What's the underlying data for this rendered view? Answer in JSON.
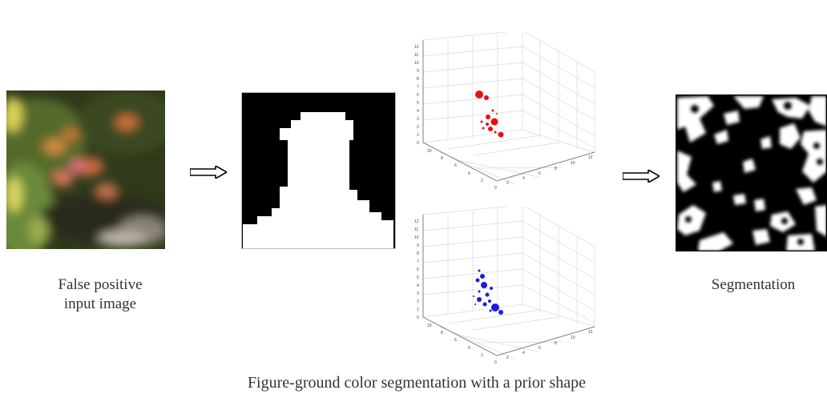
{
  "input_caption_line1": "False positive",
  "input_caption_line2": "input image",
  "output_caption": "Segmentation",
  "figure_caption": "Figure-ground color segmentation with a prior shape",
  "arrow_icon": "double-right-arrow",
  "colors": {
    "foreground_points": "#e81010",
    "background_points": "#1c1cd8",
    "mask_black": "#000000",
    "mask_white": "#ffffff"
  },
  "plot_ticks": {
    "z": [
      "0",
      "1",
      "2",
      "3",
      "4",
      "5",
      "6",
      "7",
      "8",
      "9",
      "10",
      "11",
      "12"
    ],
    "x": [
      "0",
      "2",
      "4",
      "6",
      "8",
      "10"
    ],
    "y": [
      "2",
      "4",
      "6",
      "8",
      "10",
      "12"
    ]
  }
}
